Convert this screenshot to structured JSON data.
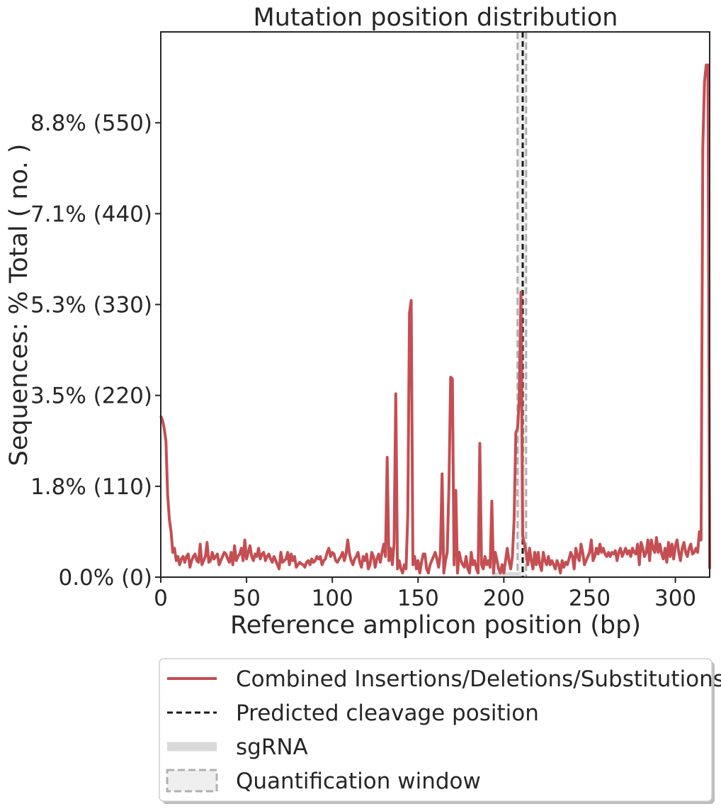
{
  "chart_data": {
    "type": "line",
    "title": "Mutation position distribution",
    "xlabel": "Reference amplicon position (bp)",
    "ylabel": "Sequences: % Total ( no. )",
    "xlim": [
      0,
      320
    ],
    "ylim": [
      0,
      660
    ],
    "x_ticks": [
      0,
      50,
      100,
      150,
      200,
      250,
      300
    ],
    "y_ticks": [
      {
        "value": 0,
        "label": "0.0% (0)"
      },
      {
        "value": 110,
        "label": "1.8% (110)"
      },
      {
        "value": 220,
        "label": "3.5% (220)"
      },
      {
        "value": 330,
        "label": "5.3% (330)"
      },
      {
        "value": 440,
        "label": "7.1% (440)"
      },
      {
        "value": 550,
        "label": "8.8% (550)"
      }
    ],
    "grid": false,
    "legend_position": "below",
    "series": [
      {
        "name": "Combined Insertions/Deletions/Substitutions",
        "color": "#c44e52",
        "points": [
          [
            0,
            195
          ],
          [
            1,
            190
          ],
          [
            2,
            180
          ],
          [
            3,
            165
          ],
          [
            4,
            100
          ],
          [
            5,
            70
          ],
          [
            6,
            55
          ],
          [
            7,
            30
          ],
          [
            8,
            35
          ],
          [
            9,
            20
          ],
          [
            10,
            25
          ],
          [
            11,
            15
          ],
          [
            12,
            22
          ],
          [
            13,
            25
          ],
          [
            14,
            18
          ],
          [
            15,
            25
          ],
          [
            16,
            28
          ],
          [
            17,
            12
          ],
          [
            18,
            20
          ],
          [
            19,
            25
          ],
          [
            20,
            28
          ],
          [
            21,
            20
          ],
          [
            22,
            18
          ],
          [
            23,
            40
          ],
          [
            24,
            15
          ],
          [
            25,
            20
          ],
          [
            26,
            25
          ],
          [
            27,
            42
          ],
          [
            28,
            18
          ],
          [
            29,
            20
          ],
          [
            30,
            30
          ],
          [
            31,
            22
          ],
          [
            32,
            25
          ],
          [
            33,
            28
          ],
          [
            34,
            15
          ],
          [
            35,
            20
          ],
          [
            36,
            25
          ],
          [
            37,
            30
          ],
          [
            38,
            28
          ],
          [
            39,
            22
          ],
          [
            40,
            18
          ],
          [
            41,
            30
          ],
          [
            42,
            15
          ],
          [
            43,
            38
          ],
          [
            44,
            20
          ],
          [
            45,
            25
          ],
          [
            46,
            28
          ],
          [
            47,
            35
          ],
          [
            48,
            20
          ],
          [
            49,
            45
          ],
          [
            50,
            22
          ],
          [
            51,
            30
          ],
          [
            52,
            38
          ],
          [
            53,
            25
          ],
          [
            54,
            20
          ],
          [
            55,
            28
          ],
          [
            56,
            25
          ],
          [
            57,
            35
          ],
          [
            58,
            22
          ],
          [
            59,
            28
          ],
          [
            60,
            30
          ],
          [
            61,
            20
          ],
          [
            62,
            25
          ],
          [
            63,
            28
          ],
          [
            64,
            22
          ],
          [
            65,
            18
          ],
          [
            66,
            25
          ],
          [
            67,
            20
          ],
          [
            68,
            15
          ],
          [
            69,
            10
          ],
          [
            70,
            30
          ],
          [
            71,
            18
          ],
          [
            72,
            20
          ],
          [
            73,
            22
          ],
          [
            74,
            30
          ],
          [
            75,
            15
          ],
          [
            76,
            28
          ],
          [
            77,
            20
          ],
          [
            78,
            25
          ],
          [
            79,
            12
          ],
          [
            80,
            15
          ],
          [
            81,
            18
          ],
          [
            82,
            16
          ],
          [
            83,
            15
          ],
          [
            84,
            12
          ],
          [
            85,
            18
          ],
          [
            86,
            20
          ],
          [
            87,
            15
          ],
          [
            88,
            22
          ],
          [
            89,
            18
          ],
          [
            90,
            20
          ],
          [
            91,
            25
          ],
          [
            92,
            22
          ],
          [
            93,
            25
          ],
          [
            94,
            15
          ],
          [
            95,
            20
          ],
          [
            96,
            22
          ],
          [
            97,
            30
          ],
          [
            98,
            35
          ],
          [
            99,
            25
          ],
          [
            100,
            30
          ],
          [
            101,
            28
          ],
          [
            102,
            20
          ],
          [
            103,
            18
          ],
          [
            104,
            22
          ],
          [
            105,
            25
          ],
          [
            106,
            30
          ],
          [
            107,
            20
          ],
          [
            108,
            28
          ],
          [
            109,
            45
          ],
          [
            110,
            28
          ],
          [
            111,
            20
          ],
          [
            112,
            15
          ],
          [
            113,
            22
          ],
          [
            114,
            25
          ],
          [
            115,
            30
          ],
          [
            116,
            18
          ],
          [
            117,
            12
          ],
          [
            118,
            25
          ],
          [
            119,
            20
          ],
          [
            120,
            28
          ],
          [
            121,
            10
          ],
          [
            122,
            15
          ],
          [
            123,
            30
          ],
          [
            124,
            25
          ],
          [
            125,
            12
          ],
          [
            126,
            22
          ],
          [
            127,
            28
          ],
          [
            128,
            18
          ],
          [
            129,
            30
          ],
          [
            130,
            40
          ],
          [
            131,
            25
          ],
          [
            132,
            145
          ],
          [
            133,
            20
          ],
          [
            134,
            35
          ],
          [
            135,
            15
          ],
          [
            136,
            40
          ],
          [
            137,
            222
          ],
          [
            138,
            10
          ],
          [
            139,
            20
          ],
          [
            140,
            10
          ],
          [
            141,
            5
          ],
          [
            142,
            15
          ],
          [
            143,
            10
          ],
          [
            144,
            75
          ],
          [
            145,
            320
          ],
          [
            146,
            335
          ],
          [
            147,
            15
          ],
          [
            148,
            25
          ],
          [
            149,
            10
          ],
          [
            150,
            20
          ],
          [
            151,
            5
          ],
          [
            152,
            18
          ],
          [
            153,
            28
          ],
          [
            154,
            28
          ],
          [
            155,
            10
          ],
          [
            156,
            5
          ],
          [
            157,
            15
          ],
          [
            158,
            20
          ],
          [
            159,
            25
          ],
          [
            160,
            30
          ],
          [
            161,
            22
          ],
          [
            162,
            12
          ],
          [
            163,
            28
          ],
          [
            164,
            125
          ],
          [
            165,
            5
          ],
          [
            166,
            20
          ],
          [
            167,
            30
          ],
          [
            168,
            110
          ],
          [
            169,
            242
          ],
          [
            170,
            240
          ],
          [
            171,
            15
          ],
          [
            172,
            105
          ],
          [
            173,
            5
          ],
          [
            174,
            30
          ],
          [
            175,
            20
          ],
          [
            176,
            15
          ],
          [
            177,
            12
          ],
          [
            178,
            25
          ],
          [
            179,
            10
          ],
          [
            180,
            5
          ],
          [
            181,
            30
          ],
          [
            182,
            15
          ],
          [
            183,
            20
          ],
          [
            184,
            10
          ],
          [
            185,
            5
          ],
          [
            186,
            162
          ],
          [
            187,
            15
          ],
          [
            188,
            10
          ],
          [
            189,
            25
          ],
          [
            190,
            15
          ],
          [
            191,
            20
          ],
          [
            192,
            12
          ],
          [
            193,
            92
          ],
          [
            194,
            5
          ],
          [
            195,
            30
          ],
          [
            196,
            20
          ],
          [
            197,
            10
          ],
          [
            198,
            5
          ],
          [
            199,
            15
          ],
          [
            200,
            5
          ],
          [
            201,
            20
          ],
          [
            202,
            35
          ],
          [
            203,
            20
          ],
          [
            204,
            10
          ],
          [
            205,
            25
          ],
          [
            206,
            70
          ],
          [
            207,
            175
          ],
          [
            208,
            180
          ],
          [
            209,
            215
          ],
          [
            210,
            345
          ],
          [
            211,
            50
          ],
          [
            212,
            40
          ],
          [
            213,
            30
          ],
          [
            214,
            15
          ],
          [
            215,
            35
          ],
          [
            216,
            20
          ],
          [
            217,
            10
          ],
          [
            218,
            30
          ],
          [
            219,
            15
          ],
          [
            220,
            30
          ],
          [
            221,
            15
          ],
          [
            222,
            8
          ],
          [
            223,
            30
          ],
          [
            224,
            20
          ],
          [
            225,
            15
          ],
          [
            226,
            25
          ],
          [
            227,
            15
          ],
          [
            228,
            20
          ],
          [
            229,
            15
          ],
          [
            230,
            10
          ],
          [
            231,
            20
          ],
          [
            232,
            15
          ],
          [
            233,
            5
          ],
          [
            234,
            20
          ],
          [
            235,
            12
          ],
          [
            236,
            18
          ],
          [
            237,
            15
          ],
          [
            238,
            22
          ],
          [
            239,
            30
          ],
          [
            240,
            25
          ],
          [
            241,
            10
          ],
          [
            242,
            35
          ],
          [
            243,
            25
          ],
          [
            244,
            20
          ],
          [
            245,
            40
          ],
          [
            246,
            30
          ],
          [
            247,
            15
          ],
          [
            248,
            20
          ],
          [
            249,
            25
          ],
          [
            250,
            30
          ],
          [
            251,
            45
          ],
          [
            252,
            20
          ],
          [
            253,
            25
          ],
          [
            254,
            35
          ],
          [
            255,
            28
          ],
          [
            256,
            40
          ],
          [
            257,
            30
          ],
          [
            258,
            35
          ],
          [
            259,
            28
          ],
          [
            260,
            25
          ],
          [
            261,
            30
          ],
          [
            262,
            25
          ],
          [
            263,
            30
          ],
          [
            264,
            28
          ],
          [
            265,
            32
          ],
          [
            266,
            20
          ],
          [
            267,
            30
          ],
          [
            268,
            35
          ],
          [
            269,
            25
          ],
          [
            270,
            30
          ],
          [
            271,
            35
          ],
          [
            272,
            28
          ],
          [
            273,
            32
          ],
          [
            274,
            25
          ],
          [
            275,
            35
          ],
          [
            276,
            30
          ],
          [
            277,
            28
          ],
          [
            278,
            40
          ],
          [
            279,
            15
          ],
          [
            280,
            42
          ],
          [
            281,
            35
          ],
          [
            282,
            25
          ],
          [
            283,
            30
          ],
          [
            284,
            45
          ],
          [
            285,
            20
          ],
          [
            286,
            45
          ],
          [
            287,
            35
          ],
          [
            288,
            30
          ],
          [
            289,
            48
          ],
          [
            290,
            30
          ],
          [
            291,
            40
          ],
          [
            292,
            28
          ],
          [
            293,
            22
          ],
          [
            294,
            35
          ],
          [
            295,
            18
          ],
          [
            296,
            42
          ],
          [
            297,
            25
          ],
          [
            298,
            40
          ],
          [
            299,
            22
          ],
          [
            300,
            38
          ],
          [
            301,
            45
          ],
          [
            302,
            30
          ],
          [
            303,
            20
          ],
          [
            304,
            35
          ],
          [
            305,
            42
          ],
          [
            306,
            30
          ],
          [
            307,
            25
          ],
          [
            308,
            35
          ],
          [
            309,
            40
          ],
          [
            310,
            28
          ],
          [
            311,
            30
          ],
          [
            312,
            35
          ],
          [
            313,
            30
          ],
          [
            314,
            55
          ],
          [
            315,
            45
          ],
          [
            316,
            520
          ],
          [
            317,
            600
          ],
          [
            318,
            620
          ],
          [
            319,
            620
          ],
          [
            320,
            10
          ]
        ]
      }
    ],
    "annotations": {
      "predicted_cleavage_position": 211,
      "sgrna_range": [
        193,
        210
      ],
      "quantification_window": [
        208,
        213
      ]
    },
    "legend": [
      {
        "label": "Combined Insertions/Deletions/Substitutions",
        "kind": "line",
        "color": "#c44e52"
      },
      {
        "label": "Predicted cleavage position",
        "kind": "dashed",
        "color": "#1a1a1a"
      },
      {
        "label": "sgRNA",
        "kind": "thick",
        "color": "#d9d9d9"
      },
      {
        "label": "Quantification window",
        "kind": "dashed-box",
        "color": "#b0b0b0"
      }
    ]
  }
}
